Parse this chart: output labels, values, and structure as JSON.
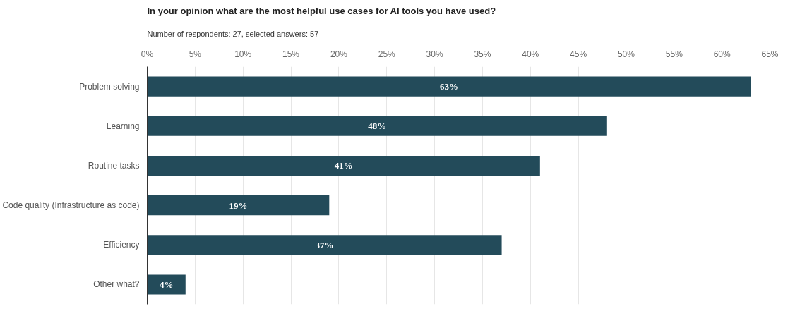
{
  "chart_data": {
    "type": "bar",
    "orientation": "horizontal",
    "title": "In your opinion what are the most helpful use cases for AI tools you have used?",
    "subtitle": "Number of respondents: 27, selected answers: 57",
    "categories": [
      "Problem solving",
      "Learning",
      "Routine tasks",
      "Code quality (Infrastructure as code)",
      "Efficiency",
      "Other what?"
    ],
    "values": [
      63,
      48,
      41,
      19,
      37,
      4
    ],
    "color": "#234b5a",
    "value_labels": [
      "63%",
      "48%",
      "41%",
      "19%",
      "37%",
      "4%"
    ],
    "xlim": [
      0,
      65
    ],
    "xticks": [
      {
        "value": 0,
        "label": "0%"
      },
      {
        "value": 5,
        "label": "5%"
      },
      {
        "value": 10,
        "label": "10%"
      },
      {
        "value": 15,
        "label": "15%"
      },
      {
        "value": 20,
        "label": "20%"
      },
      {
        "value": 25,
        "label": "25%"
      },
      {
        "value": 30,
        "label": "30%"
      },
      {
        "value": 35,
        "label": "35%"
      },
      {
        "value": 40,
        "label": "40%"
      },
      {
        "value": 45,
        "label": "45%"
      },
      {
        "value": 50,
        "label": "50%"
      },
      {
        "value": 55,
        "label": "55%"
      },
      {
        "value": 60,
        "label": "60%"
      },
      {
        "value": 65,
        "label": "65%"
      }
    ],
    "grid": "x"
  }
}
